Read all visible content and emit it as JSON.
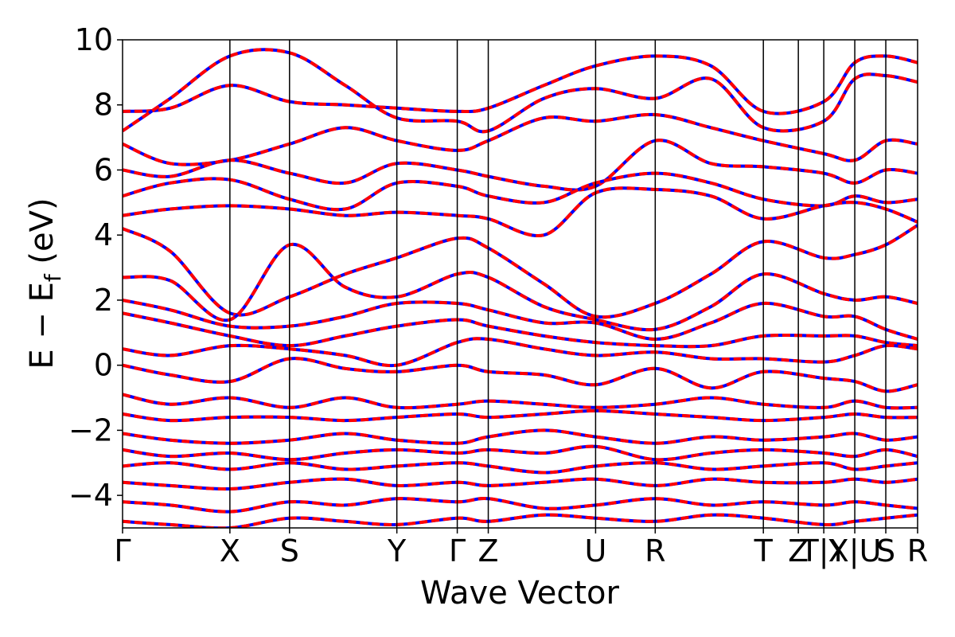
{
  "chart_data": {
    "type": "line",
    "title": "",
    "xlabel": "Wave Vector",
    "ylabel": "E − E_f (eV)",
    "ylabel_parts": {
      "main": "E − E",
      "sub": "f",
      "unit": " (eV)"
    },
    "ylim": [
      -5,
      10
    ],
    "yticks": [
      {
        "value": 10,
        "label": "10"
      },
      {
        "value": 8,
        "label": "8"
      },
      {
        "value": 6,
        "label": "6"
      },
      {
        "value": 4,
        "label": "4"
      },
      {
        "value": 2,
        "label": "2"
      },
      {
        "value": 0,
        "label": "0"
      },
      {
        "value": -2,
        "label": "−2"
      },
      {
        "value": -4,
        "label": "−4"
      }
    ],
    "k_ticks": [
      {
        "value": 0.0,
        "label": "Γ"
      },
      {
        "value": 0.135,
        "label": "X"
      },
      {
        "value": 0.21,
        "label": "S"
      },
      {
        "value": 0.345,
        "label": "Y"
      },
      {
        "value": 0.421,
        "label": "Γ"
      },
      {
        "value": 0.46,
        "label": "Z"
      },
      {
        "value": 0.595,
        "label": "U"
      },
      {
        "value": 0.67,
        "label": "R"
      },
      {
        "value": 0.806,
        "label": "T"
      },
      {
        "value": 0.85,
        "label": "Z"
      },
      {
        "value": 0.882,
        "label": "T|Y"
      },
      {
        "value": 0.921,
        "label": "X|U"
      },
      {
        "value": 0.96,
        "label": "S"
      },
      {
        "value": 1.0,
        "label": "R"
      }
    ],
    "grid": false,
    "series": [
      {
        "color": "#0000ff",
        "style": "solid"
      },
      {
        "color": "#ff0000",
        "style": "dashed"
      }
    ],
    "bands_approx": [
      [
        [
          0,
          7.8
        ],
        [
          0.06,
          7.9
        ],
        [
          0.135,
          8.6
        ],
        [
          0.21,
          8.1
        ],
        [
          0.28,
          8.0
        ],
        [
          0.345,
          7.9
        ],
        [
          0.421,
          7.8
        ],
        [
          0.46,
          7.9
        ],
        [
          0.53,
          8.6
        ],
        [
          0.595,
          9.2
        ],
        [
          0.67,
          9.5
        ],
        [
          0.74,
          9.2
        ],
        [
          0.806,
          7.8
        ],
        [
          0.882,
          8.1
        ],
        [
          0.921,
          9.3
        ],
        [
          0.96,
          9.5
        ],
        [
          1.0,
          9.3
        ]
      ],
      [
        [
          0,
          7.2
        ],
        [
          0.06,
          8.2
        ],
        [
          0.135,
          9.5
        ],
        [
          0.21,
          9.6
        ],
        [
          0.28,
          8.6
        ],
        [
          0.345,
          7.6
        ],
        [
          0.421,
          7.5
        ],
        [
          0.46,
          7.2
        ],
        [
          0.53,
          8.2
        ],
        [
          0.595,
          8.5
        ],
        [
          0.67,
          8.2
        ],
        [
          0.74,
          8.8
        ],
        [
          0.806,
          7.3
        ],
        [
          0.882,
          7.5
        ],
        [
          0.921,
          8.8
        ],
        [
          0.96,
          8.9
        ],
        [
          1.0,
          8.7
        ]
      ],
      [
        [
          0,
          6.8
        ],
        [
          0.06,
          6.2
        ],
        [
          0.135,
          6.3
        ],
        [
          0.21,
          6.8
        ],
        [
          0.28,
          7.3
        ],
        [
          0.345,
          6.9
        ],
        [
          0.421,
          6.6
        ],
        [
          0.46,
          6.9
        ],
        [
          0.53,
          7.6
        ],
        [
          0.595,
          7.5
        ],
        [
          0.67,
          7.7
        ],
        [
          0.74,
          7.3
        ],
        [
          0.806,
          6.9
        ],
        [
          0.882,
          6.5
        ],
        [
          0.921,
          6.3
        ],
        [
          0.96,
          6.9
        ],
        [
          1.0,
          6.8
        ]
      ],
      [
        [
          0,
          6.0
        ],
        [
          0.06,
          5.8
        ],
        [
          0.135,
          6.3
        ],
        [
          0.21,
          5.9
        ],
        [
          0.28,
          5.6
        ],
        [
          0.345,
          6.2
        ],
        [
          0.421,
          6.0
        ],
        [
          0.46,
          5.8
        ],
        [
          0.53,
          5.5
        ],
        [
          0.595,
          5.5
        ],
        [
          0.67,
          6.9
        ],
        [
          0.74,
          6.2
        ],
        [
          0.806,
          6.1
        ],
        [
          0.882,
          5.9
        ],
        [
          0.921,
          5.6
        ],
        [
          0.96,
          6.0
        ],
        [
          1.0,
          5.9
        ]
      ],
      [
        [
          0,
          5.2
        ],
        [
          0.06,
          5.6
        ],
        [
          0.135,
          5.7
        ],
        [
          0.21,
          5.1
        ],
        [
          0.28,
          4.8
        ],
        [
          0.345,
          5.6
        ],
        [
          0.421,
          5.5
        ],
        [
          0.46,
          5.2
        ],
        [
          0.53,
          5.0
        ],
        [
          0.595,
          5.6
        ],
        [
          0.67,
          5.9
        ],
        [
          0.74,
          5.6
        ],
        [
          0.806,
          5.1
        ],
        [
          0.882,
          4.9
        ],
        [
          0.921,
          5.2
        ],
        [
          0.96,
          5.0
        ],
        [
          1.0,
          5.1
        ]
      ],
      [
        [
          0,
          4.6
        ],
        [
          0.06,
          4.8
        ],
        [
          0.135,
          4.9
        ],
        [
          0.21,
          4.8
        ],
        [
          0.28,
          4.6
        ],
        [
          0.345,
          4.7
        ],
        [
          0.421,
          4.6
        ],
        [
          0.46,
          4.5
        ],
        [
          0.53,
          4.0
        ],
        [
          0.595,
          5.3
        ],
        [
          0.67,
          5.4
        ],
        [
          0.74,
          5.2
        ],
        [
          0.806,
          4.5
        ],
        [
          0.882,
          4.9
        ],
        [
          0.921,
          5.0
        ],
        [
          0.96,
          4.8
        ],
        [
          1.0,
          4.4
        ]
      ],
      [
        [
          0,
          4.2
        ],
        [
          0.06,
          3.5
        ],
        [
          0.135,
          1.6
        ],
        [
          0.21,
          2.1
        ],
        [
          0.28,
          2.8
        ],
        [
          0.345,
          3.3
        ],
        [
          0.421,
          3.9
        ],
        [
          0.46,
          3.6
        ],
        [
          0.53,
          2.5
        ],
        [
          0.595,
          1.5
        ],
        [
          0.67,
          1.9
        ],
        [
          0.74,
          2.8
        ],
        [
          0.806,
          3.8
        ],
        [
          0.882,
          3.3
        ],
        [
          0.921,
          3.4
        ],
        [
          0.96,
          3.7
        ],
        [
          1.0,
          4.3
        ]
      ],
      [
        [
          0,
          2.7
        ],
        [
          0.06,
          2.6
        ],
        [
          0.135,
          1.4
        ],
        [
          0.21,
          3.7
        ],
        [
          0.28,
          2.4
        ],
        [
          0.345,
          2.1
        ],
        [
          0.421,
          2.8
        ],
        [
          0.46,
          2.7
        ],
        [
          0.53,
          1.8
        ],
        [
          0.595,
          1.4
        ],
        [
          0.67,
          1.1
        ],
        [
          0.74,
          1.8
        ],
        [
          0.806,
          2.8
        ],
        [
          0.882,
          2.2
        ],
        [
          0.921,
          2.0
        ],
        [
          0.96,
          2.1
        ],
        [
          1.0,
          1.9
        ]
      ],
      [
        [
          0,
          2.0
        ],
        [
          0.06,
          1.7
        ],
        [
          0.135,
          1.2
        ],
        [
          0.21,
          1.2
        ],
        [
          0.28,
          1.5
        ],
        [
          0.345,
          1.9
        ],
        [
          0.421,
          1.9
        ],
        [
          0.46,
          1.7
        ],
        [
          0.53,
          1.3
        ],
        [
          0.595,
          1.3
        ],
        [
          0.67,
          0.8
        ],
        [
          0.74,
          1.3
        ],
        [
          0.806,
          1.9
        ],
        [
          0.882,
          1.5
        ],
        [
          0.921,
          1.5
        ],
        [
          0.96,
          1.1
        ],
        [
          1.0,
          0.8
        ]
      ],
      [
        [
          0,
          1.6
        ],
        [
          0.06,
          1.3
        ],
        [
          0.135,
          0.9
        ],
        [
          0.21,
          0.6
        ],
        [
          0.28,
          0.9
        ],
        [
          0.345,
          1.2
        ],
        [
          0.421,
          1.4
        ],
        [
          0.46,
          1.2
        ],
        [
          0.53,
          0.9
        ],
        [
          0.595,
          0.7
        ],
        [
          0.67,
          0.6
        ],
        [
          0.74,
          0.6
        ],
        [
          0.806,
          0.9
        ],
        [
          0.882,
          0.9
        ],
        [
          0.921,
          0.9
        ],
        [
          0.96,
          0.7
        ],
        [
          1.0,
          0.6
        ]
      ],
      [
        [
          0,
          0.5
        ],
        [
          0.06,
          0.3
        ],
        [
          0.135,
          0.6
        ],
        [
          0.21,
          0.5
        ],
        [
          0.28,
          0.3
        ],
        [
          0.345,
          0.0
        ],
        [
          0.421,
          0.7
        ],
        [
          0.46,
          0.8
        ],
        [
          0.53,
          0.5
        ],
        [
          0.595,
          0.3
        ],
        [
          0.67,
          0.4
        ],
        [
          0.74,
          0.2
        ],
        [
          0.806,
          0.2
        ],
        [
          0.882,
          0.1
        ],
        [
          0.921,
          0.3
        ],
        [
          0.96,
          0.6
        ],
        [
          1.0,
          0.5
        ]
      ],
      [
        [
          0,
          0.0
        ],
        [
          0.06,
          -0.3
        ],
        [
          0.135,
          -0.5
        ],
        [
          0.21,
          0.2
        ],
        [
          0.28,
          -0.1
        ],
        [
          0.345,
          -0.2
        ],
        [
          0.421,
          0.0
        ],
        [
          0.46,
          -0.2
        ],
        [
          0.53,
          -0.3
        ],
        [
          0.595,
          -0.6
        ],
        [
          0.67,
          -0.1
        ],
        [
          0.74,
          -0.7
        ],
        [
          0.806,
          -0.2
        ],
        [
          0.882,
          -0.4
        ],
        [
          0.921,
          -0.5
        ],
        [
          0.96,
          -0.8
        ],
        [
          1.0,
          -0.6
        ]
      ],
      [
        [
          0,
          -0.9
        ],
        [
          0.06,
          -1.2
        ],
        [
          0.135,
          -1.0
        ],
        [
          0.21,
          -1.3
        ],
        [
          0.28,
          -1.0
        ],
        [
          0.345,
          -1.3
        ],
        [
          0.421,
          -1.2
        ],
        [
          0.46,
          -1.1
        ],
        [
          0.53,
          -1.2
        ],
        [
          0.595,
          -1.3
        ],
        [
          0.67,
          -1.2
        ],
        [
          0.74,
          -1.0
        ],
        [
          0.806,
          -1.2
        ],
        [
          0.882,
          -1.3
        ],
        [
          0.921,
          -1.1
        ],
        [
          0.96,
          -1.3
        ],
        [
          1.0,
          -1.3
        ]
      ],
      [
        [
          0,
          -1.5
        ],
        [
          0.06,
          -1.7
        ],
        [
          0.135,
          -1.6
        ],
        [
          0.21,
          -1.6
        ],
        [
          0.28,
          -1.7
        ],
        [
          0.345,
          -1.6
        ],
        [
          0.421,
          -1.5
        ],
        [
          0.46,
          -1.6
        ],
        [
          0.53,
          -1.5
        ],
        [
          0.595,
          -1.4
        ],
        [
          0.67,
          -1.5
        ],
        [
          0.74,
          -1.6
        ],
        [
          0.806,
          -1.7
        ],
        [
          0.882,
          -1.6
        ],
        [
          0.921,
          -1.5
        ],
        [
          0.96,
          -1.6
        ],
        [
          1.0,
          -1.6
        ]
      ],
      [
        [
          0,
          -2.1
        ],
        [
          0.06,
          -2.3
        ],
        [
          0.135,
          -2.4
        ],
        [
          0.21,
          -2.3
        ],
        [
          0.28,
          -2.1
        ],
        [
          0.345,
          -2.3
        ],
        [
          0.421,
          -2.4
        ],
        [
          0.46,
          -2.2
        ],
        [
          0.53,
          -2.0
        ],
        [
          0.595,
          -2.2
        ],
        [
          0.67,
          -2.4
        ],
        [
          0.74,
          -2.2
        ],
        [
          0.806,
          -2.3
        ],
        [
          0.882,
          -2.2
        ],
        [
          0.921,
          -2.1
        ],
        [
          0.96,
          -2.3
        ],
        [
          1.0,
          -2.2
        ]
      ],
      [
        [
          0,
          -2.6
        ],
        [
          0.06,
          -2.8
        ],
        [
          0.135,
          -2.7
        ],
        [
          0.21,
          -2.9
        ],
        [
          0.28,
          -2.7
        ],
        [
          0.345,
          -2.6
        ],
        [
          0.421,
          -2.7
        ],
        [
          0.46,
          -2.6
        ],
        [
          0.53,
          -2.7
        ],
        [
          0.595,
          -2.5
        ],
        [
          0.67,
          -2.9
        ],
        [
          0.74,
          -2.7
        ],
        [
          0.806,
          -2.6
        ],
        [
          0.882,
          -2.7
        ],
        [
          0.921,
          -2.8
        ],
        [
          0.96,
          -2.6
        ],
        [
          1.0,
          -2.8
        ]
      ],
      [
        [
          0,
          -3.1
        ],
        [
          0.06,
          -3.0
        ],
        [
          0.135,
          -3.2
        ],
        [
          0.21,
          -3.0
        ],
        [
          0.28,
          -3.2
        ],
        [
          0.345,
          -3.1
        ],
        [
          0.421,
          -3.0
        ],
        [
          0.46,
          -3.1
        ],
        [
          0.53,
          -3.3
        ],
        [
          0.595,
          -3.1
        ],
        [
          0.67,
          -3.0
        ],
        [
          0.74,
          -3.2
        ],
        [
          0.806,
          -3.1
        ],
        [
          0.882,
          -3.0
        ],
        [
          0.921,
          -3.2
        ],
        [
          0.96,
          -3.1
        ],
        [
          1.0,
          -3.0
        ]
      ],
      [
        [
          0,
          -3.6
        ],
        [
          0.06,
          -3.7
        ],
        [
          0.135,
          -3.8
        ],
        [
          0.21,
          -3.6
        ],
        [
          0.28,
          -3.5
        ],
        [
          0.345,
          -3.7
        ],
        [
          0.421,
          -3.6
        ],
        [
          0.46,
          -3.7
        ],
        [
          0.53,
          -3.6
        ],
        [
          0.595,
          -3.5
        ],
        [
          0.67,
          -3.7
        ],
        [
          0.74,
          -3.5
        ],
        [
          0.806,
          -3.6
        ],
        [
          0.882,
          -3.6
        ],
        [
          0.921,
          -3.5
        ],
        [
          0.96,
          -3.6
        ],
        [
          1.0,
          -3.5
        ]
      ],
      [
        [
          0,
          -4.2
        ],
        [
          0.06,
          -4.3
        ],
        [
          0.135,
          -4.5
        ],
        [
          0.21,
          -4.2
        ],
        [
          0.28,
          -4.3
        ],
        [
          0.345,
          -4.1
        ],
        [
          0.421,
          -4.2
        ],
        [
          0.46,
          -4.1
        ],
        [
          0.53,
          -4.4
        ],
        [
          0.595,
          -4.3
        ],
        [
          0.67,
          -4.1
        ],
        [
          0.74,
          -4.3
        ],
        [
          0.806,
          -4.2
        ],
        [
          0.882,
          -4.3
        ],
        [
          0.921,
          -4.2
        ],
        [
          0.96,
          -4.3
        ],
        [
          1.0,
          -4.4
        ]
      ],
      [
        [
          0,
          -4.8
        ],
        [
          0.06,
          -4.9
        ],
        [
          0.135,
          -5.0
        ],
        [
          0.21,
          -4.7
        ],
        [
          0.28,
          -4.8
        ],
        [
          0.345,
          -4.9
        ],
        [
          0.421,
          -4.7
        ],
        [
          0.46,
          -4.8
        ],
        [
          0.53,
          -4.6
        ],
        [
          0.595,
          -4.7
        ],
        [
          0.67,
          -4.8
        ],
        [
          0.74,
          -4.6
        ],
        [
          0.806,
          -4.7
        ],
        [
          0.882,
          -4.9
        ],
        [
          0.921,
          -4.8
        ],
        [
          0.96,
          -4.7
        ],
        [
          1.0,
          -4.6
        ]
      ]
    ]
  }
}
